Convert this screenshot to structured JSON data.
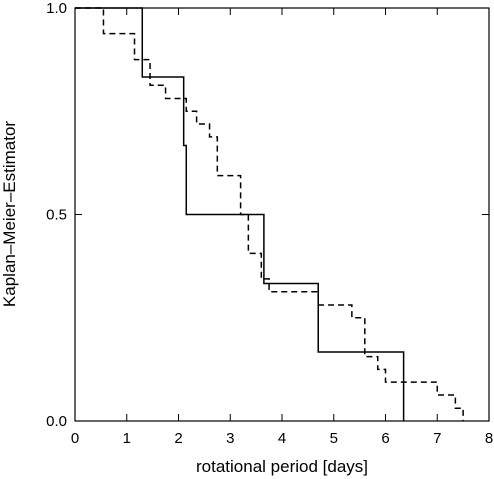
{
  "chart_data": {
    "type": "line",
    "title": "",
    "xlabel": "rotational period [days]",
    "ylabel": "Kaplan–Meier–Estimator",
    "xlim": [
      0,
      8
    ],
    "ylim": [
      0,
      1
    ],
    "x_ticks": [
      0,
      1,
      2,
      3,
      4,
      5,
      6,
      7,
      8
    ],
    "x_tick_labels": [
      "0",
      "1",
      "2",
      "3",
      "4",
      "5",
      "6",
      "7",
      "8"
    ],
    "y_ticks": [
      0,
      0.5,
      1
    ],
    "y_tick_labels": [
      "0.0",
      "0.5",
      "1.0"
    ],
    "grid": false,
    "legend": "none",
    "step": true,
    "series": [
      {
        "style": "solid",
        "color": "#000000",
        "x": [
          0,
          1.3,
          2.1,
          2.15,
          2.2,
          3.65,
          4.7,
          6.35
        ],
        "y": [
          1.0,
          0.833,
          0.667,
          0.5,
          0.5,
          0.333,
          0.167,
          0.0
        ]
      },
      {
        "style": "dashed",
        "color": "#000000",
        "x": [
          0,
          0.55,
          1.15,
          1.45,
          1.75,
          2.15,
          2.35,
          2.6,
          2.75,
          3.2,
          3.35,
          3.6,
          3.75,
          4.7,
          5.35,
          5.6,
          5.85,
          6.0,
          6.35,
          7.0,
          7.35,
          7.5
        ],
        "y": [
          1.0,
          0.938,
          0.875,
          0.813,
          0.781,
          0.75,
          0.719,
          0.688,
          0.594,
          0.5,
          0.406,
          0.344,
          0.313,
          0.281,
          0.25,
          0.156,
          0.125,
          0.094,
          0.094,
          0.063,
          0.031,
          0.0
        ]
      }
    ]
  }
}
